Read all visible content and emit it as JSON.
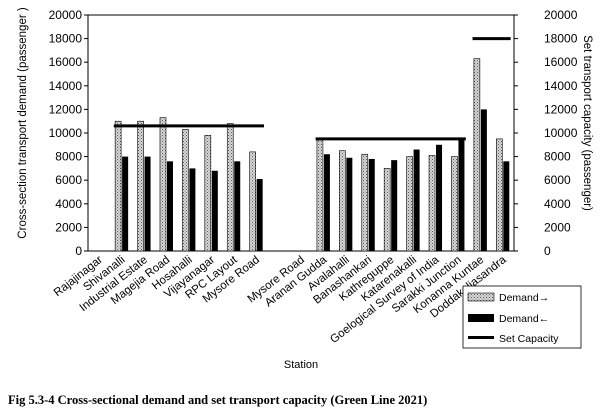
{
  "caption": "Fig 5.3-4 Cross-sectional demand and set transport capacity (Green Line 2021)",
  "chart_data": {
    "type": "bar",
    "xlabel": "Station",
    "ylabel_left": "Cross-section transport demand (passenger )",
    "ylabel_right": "Set transport capacity (passenger)",
    "ylim": [
      0,
      20000
    ],
    "yticks": [
      "0",
      "2000",
      "4000",
      "6000",
      "8000",
      "10000",
      "12000",
      "14000",
      "16000",
      "18000",
      "20000"
    ],
    "grid": false,
    "legend_position": "bottom-right",
    "categories": [
      "Rajajinagar",
      "Shivanalli",
      "Industrial Estate",
      "Magejia Road",
      "Hosahalli",
      "Vijayanagar",
      "RPC Layout",
      "Mysore Road",
      "",
      "Mysore Road",
      "Aranan Gudda",
      "Avalahalli",
      "Banashankari",
      "Kathreguppe",
      "Katarenakalli",
      "Goelogical Survey of India",
      "Sarakki Junction",
      "Konanna Kuntae",
      "Doddakaliasandra"
    ],
    "series": [
      {
        "name": "Demand→",
        "values": [
          null,
          11000,
          11000,
          11300,
          10300,
          9800,
          10800,
          8400,
          null,
          null,
          9400,
          8500,
          8200,
          7000,
          8000,
          8100,
          8000,
          16300,
          9500
        ]
      },
      {
        "name": "Demand←",
        "values": [
          null,
          8000,
          8000,
          7600,
          7000,
          6800,
          7600,
          6100,
          null,
          null,
          8200,
          7900,
          7800,
          7700,
          8600,
          9000,
          9500,
          12000,
          7600
        ]
      },
      {
        "name": "Set Capacity",
        "values": [
          null,
          10600,
          10600,
          10600,
          10600,
          10600,
          10600,
          10600,
          null,
          null,
          9500,
          9500,
          9500,
          9500,
          9500,
          9500,
          9500,
          18000,
          18000
        ]
      }
    ]
  }
}
